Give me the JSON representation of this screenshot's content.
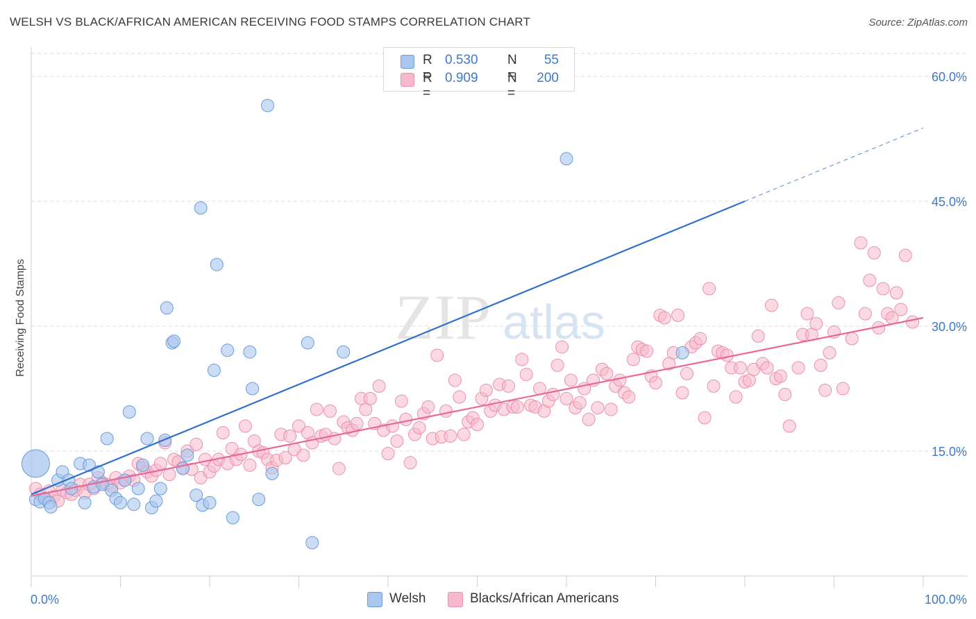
{
  "title": "WELSH VS BLACK/AFRICAN AMERICAN RECEIVING FOOD STAMPS CORRELATION CHART",
  "source": "Source: ZipAtlas.com",
  "watermark": {
    "zip": "ZIP",
    "atlas": "atlas"
  },
  "legend": {
    "welsh": {
      "r_label": "R =",
      "r_value": "0.530",
      "n_label": "N =",
      "n_value": "55"
    },
    "black": {
      "r_label": "R =",
      "r_value": "0.909",
      "n_label": "N =",
      "n_value": "200"
    }
  },
  "bottom_legend": {
    "welsh": "Welsh",
    "black": "Blacks/African Americans"
  },
  "colors": {
    "welsh_fill": "#a9c6ee",
    "welsh_stroke": "#6b9bd8",
    "welsh_line": "#2f6fcc",
    "black_fill": "#f6b9cc",
    "black_stroke": "#ec8fab",
    "black_line": "#e8679a",
    "axis_text": "#3e78c6",
    "grid": "#dddddd"
  },
  "chart_data": {
    "type": "scatter",
    "title": "WELSH VS BLACK/AFRICAN AMERICAN RECEIVING FOOD STAMPS CORRELATION CHART",
    "xlabel": "",
    "ylabel": "Receiving Food Stamps",
    "xlim": [
      0,
      100
    ],
    "ylim": [
      0,
      62.5
    ],
    "x_tick_labels": [
      "0.0%",
      "100.0%"
    ],
    "y_ticks": [
      15,
      30,
      45,
      60
    ],
    "y_tick_labels": [
      "15.0%",
      "30.0%",
      "45.0%",
      "60.0%"
    ],
    "grid": true,
    "legend_position": "top-center",
    "series": [
      {
        "name": "Welsh",
        "r": 0.53,
        "n": 55,
        "trend": {
          "x0": 0,
          "y0": 9.8,
          "x1": 80,
          "y1": 45.0,
          "dashed_to_x": 100,
          "dashed_to_y": 53.8
        },
        "points": [
          [
            0.5,
            13.5,
            "large"
          ],
          [
            0.5,
            9.2
          ],
          [
            1,
            8.9
          ],
          [
            1.5,
            9.3
          ],
          [
            2,
            8.8
          ],
          [
            2.2,
            8.3
          ],
          [
            3,
            11.5
          ],
          [
            3.5,
            12.5
          ],
          [
            4.2,
            11.5
          ],
          [
            4.5,
            10.5
          ],
          [
            5.5,
            13.5
          ],
          [
            6,
            8.8
          ],
          [
            6.5,
            13.3
          ],
          [
            7,
            10.7
          ],
          [
            7.5,
            12.5
          ],
          [
            8,
            11.0
          ],
          [
            8.5,
            16.5
          ],
          [
            9,
            10.3
          ],
          [
            9.5,
            9.3
          ],
          [
            10,
            8.8
          ],
          [
            10.5,
            11.5
          ],
          [
            11,
            19.7
          ],
          [
            11.5,
            8.6
          ],
          [
            12,
            10.5
          ],
          [
            12.5,
            13.3
          ],
          [
            13,
            16.5
          ],
          [
            13.5,
            8.2
          ],
          [
            14,
            9.0
          ],
          [
            14.5,
            10.5
          ],
          [
            15,
            16.3
          ],
          [
            15.2,
            32.2
          ],
          [
            15.8,
            28.0
          ],
          [
            16,
            28.2
          ],
          [
            17,
            12.9
          ],
          [
            17.5,
            14.5
          ],
          [
            18.5,
            9.7
          ],
          [
            19,
            44.2
          ],
          [
            19.2,
            8.5
          ],
          [
            20,
            8.8
          ],
          [
            20.5,
            24.7
          ],
          [
            20.8,
            37.4
          ],
          [
            22,
            27.1
          ],
          [
            22.6,
            7.0
          ],
          [
            24.5,
            26.9
          ],
          [
            24.8,
            22.5
          ],
          [
            25.5,
            9.2
          ],
          [
            26.5,
            56.5
          ],
          [
            27,
            12.3
          ],
          [
            31,
            28.0
          ],
          [
            31.5,
            4.0
          ],
          [
            35,
            26.9
          ],
          [
            60,
            50.1
          ],
          [
            73,
            26.8
          ]
        ]
      },
      {
        "name": "Blacks/African Americans",
        "r": 0.909,
        "n": 200,
        "trend": {
          "x0": 0,
          "y0": 9.6,
          "x1": 100,
          "y1": 31.0
        },
        "points": [
          [
            0.5,
            10.5
          ],
          [
            1,
            9.8
          ],
          [
            1.5,
            9.3
          ],
          [
            2,
            10.2
          ],
          [
            2.5,
            9.5
          ],
          [
            3,
            9.0
          ],
          [
            3.5,
            10.3
          ],
          [
            4,
            10.0
          ],
          [
            4.5,
            9.8
          ],
          [
            5,
            10.3
          ],
          [
            5.5,
            11.0
          ],
          [
            6,
            10.0
          ],
          [
            6.5,
            11.0
          ],
          [
            7,
            10.5
          ],
          [
            7.5,
            11.8
          ],
          [
            8,
            11.2
          ],
          [
            8.5,
            11.0
          ],
          [
            9,
            10.8
          ],
          [
            9.5,
            11.8
          ],
          [
            10,
            11.2
          ],
          [
            10.5,
            11.5
          ],
          [
            11,
            12.0
          ],
          [
            11.5,
            11.5
          ],
          [
            12,
            13.5
          ],
          [
            12.5,
            13.0
          ],
          [
            13,
            12.5
          ],
          [
            13.5,
            12.0
          ],
          [
            14,
            12.7
          ],
          [
            14.5,
            13.5
          ],
          [
            15,
            16.0
          ],
          [
            15.5,
            12.2
          ],
          [
            16,
            14.0
          ],
          [
            16.5,
            13.7
          ],
          [
            17,
            13.0
          ],
          [
            17.5,
            15.0
          ],
          [
            18,
            12.8
          ],
          [
            18.5,
            15.8
          ],
          [
            19,
            11.8
          ],
          [
            19.5,
            14.0
          ],
          [
            20,
            12.5
          ],
          [
            20.5,
            13.2
          ],
          [
            21,
            14.0
          ],
          [
            21.5,
            17.2
          ],
          [
            22,
            13.5
          ],
          [
            22.5,
            15.3
          ],
          [
            23,
            14.0
          ],
          [
            23.5,
            14.6
          ],
          [
            24,
            18.0
          ],
          [
            24.5,
            13.3
          ],
          [
            25,
            16.2
          ],
          [
            25.5,
            15.0
          ],
          [
            26,
            14.8
          ],
          [
            26.5,
            14.0
          ],
          [
            27,
            13.0
          ],
          [
            27.5,
            13.9
          ],
          [
            28,
            17.0
          ],
          [
            28.5,
            14.2
          ],
          [
            29,
            16.8
          ],
          [
            29.5,
            15.2
          ],
          [
            30,
            18.0
          ],
          [
            30.5,
            14.5
          ],
          [
            31,
            17.2
          ],
          [
            31.5,
            16.0
          ],
          [
            32,
            20.0
          ],
          [
            32.5,
            16.8
          ],
          [
            33,
            17.0
          ],
          [
            33.5,
            19.8
          ],
          [
            34,
            16.5
          ],
          [
            34.5,
            12.9
          ],
          [
            35,
            18.5
          ],
          [
            35.5,
            17.8
          ],
          [
            36,
            17.5
          ],
          [
            36.5,
            18.3
          ],
          [
            37,
            21.3
          ],
          [
            37.5,
            20.0
          ],
          [
            38,
            21.3
          ],
          [
            38.5,
            18.3
          ],
          [
            39,
            22.8
          ],
          [
            39.5,
            17.5
          ],
          [
            40,
            14.7
          ],
          [
            40.5,
            18.0
          ],
          [
            41,
            16.2
          ],
          [
            41.5,
            21.0
          ],
          [
            42,
            18.8
          ],
          [
            42.5,
            13.6
          ],
          [
            43,
            17.0
          ],
          [
            43.5,
            17.8
          ],
          [
            44,
            19.5
          ],
          [
            44.5,
            20.3
          ],
          [
            45,
            16.5
          ],
          [
            45.5,
            26.5
          ],
          [
            46,
            16.7
          ],
          [
            46.5,
            19.8
          ],
          [
            47,
            16.8
          ],
          [
            47.5,
            23.5
          ],
          [
            48,
            21.5
          ],
          [
            48.5,
            17.0
          ],
          [
            49,
            18.5
          ],
          [
            49.5,
            19.0
          ],
          [
            50,
            18.2
          ],
          [
            50.5,
            21.3
          ],
          [
            51,
            22.3
          ],
          [
            51.5,
            19.8
          ],
          [
            52,
            20.5
          ],
          [
            52.5,
            23.0
          ],
          [
            53,
            20.0
          ],
          [
            53.5,
            22.8
          ],
          [
            54,
            20.3
          ],
          [
            54.5,
            20.3
          ],
          [
            55,
            26.0
          ],
          [
            55.5,
            24.2
          ],
          [
            56,
            20.5
          ],
          [
            56.5,
            20.3
          ],
          [
            57,
            22.5
          ],
          [
            57.5,
            19.8
          ],
          [
            58,
            21.0
          ],
          [
            58.5,
            21.8
          ],
          [
            59,
            25.3
          ],
          [
            59.5,
            27.5
          ],
          [
            60,
            21.3
          ],
          [
            60.5,
            23.5
          ],
          [
            61,
            20.2
          ],
          [
            61.5,
            20.8
          ],
          [
            62,
            22.5
          ],
          [
            62.5,
            18.8
          ],
          [
            63,
            23.5
          ],
          [
            63.5,
            20.2
          ],
          [
            64,
            24.8
          ],
          [
            64.5,
            24.3
          ],
          [
            65,
            20.0
          ],
          [
            65.5,
            22.8
          ],
          [
            66,
            23.5
          ],
          [
            66.5,
            22.0
          ],
          [
            67,
            21.5
          ],
          [
            67.5,
            26.0
          ],
          [
            68,
            27.5
          ],
          [
            68.5,
            27.2
          ],
          [
            69,
            27.0
          ],
          [
            69.5,
            24.0
          ],
          [
            70,
            23.2
          ],
          [
            70.5,
            31.3
          ],
          [
            71,
            31.0
          ],
          [
            71.5,
            25.5
          ],
          [
            72,
            26.8
          ],
          [
            72.5,
            31.3
          ],
          [
            73,
            22.0
          ],
          [
            73.5,
            24.3
          ],
          [
            74,
            27.5
          ],
          [
            74.5,
            28.0
          ],
          [
            75,
            28.5
          ],
          [
            75.5,
            19.0
          ],
          [
            76,
            34.5
          ],
          [
            76.5,
            22.8
          ],
          [
            77,
            27.0
          ],
          [
            77.5,
            26.8
          ],
          [
            78,
            26.5
          ],
          [
            78.5,
            25.0
          ],
          [
            79,
            21.5
          ],
          [
            79.5,
            25.0
          ],
          [
            80,
            23.3
          ],
          [
            80.5,
            23.5
          ],
          [
            81,
            24.8
          ],
          [
            81.5,
            28.8
          ],
          [
            82,
            25.5
          ],
          [
            82.5,
            25.0
          ],
          [
            83,
            32.5
          ],
          [
            83.5,
            23.7
          ],
          [
            84,
            24.0
          ],
          [
            84.5,
            21.8
          ],
          [
            85,
            18.0
          ],
          [
            86,
            25.0
          ],
          [
            86.5,
            29.0
          ],
          [
            87,
            31.5
          ],
          [
            87.5,
            29.0
          ],
          [
            88,
            30.3
          ],
          [
            88.5,
            25.3
          ],
          [
            89,
            22.3
          ],
          [
            89.5,
            26.8
          ],
          [
            90,
            29.3
          ],
          [
            90.5,
            32.8
          ],
          [
            91,
            22.5
          ],
          [
            92,
            28.5
          ],
          [
            93,
            40.0
          ],
          [
            93.5,
            31.5
          ],
          [
            94,
            35.5
          ],
          [
            94.5,
            38.8
          ],
          [
            95,
            29.8
          ],
          [
            95.5,
            34.5
          ],
          [
            96,
            31.5
          ],
          [
            96.5,
            31.0
          ],
          [
            97,
            34.0
          ],
          [
            97.5,
            32.0
          ],
          [
            98,
            38.5
          ],
          [
            98.8,
            30.5
          ]
        ]
      }
    ]
  }
}
